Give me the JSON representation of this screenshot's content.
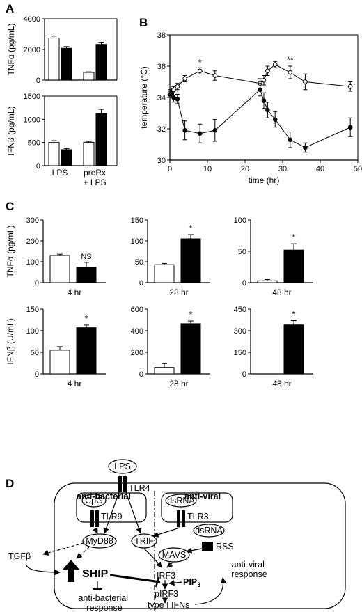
{
  "panels": {
    "A": "A",
    "B": "B",
    "C": "C",
    "D": "D"
  },
  "chart_data": [
    {
      "panel": "A",
      "type": "bar",
      "categories": [
        "LPS",
        "preRx\n+ LPS"
      ],
      "ylabel": "TNFα (pg/mL)",
      "ylim": [
        0,
        4000
      ],
      "yticks": [
        "0",
        "2000",
        "4000"
      ],
      "series": [
        {
          "fill": "#ffffff",
          "values": [
            2750,
            500
          ],
          "errors": [
            120,
            40
          ]
        },
        {
          "fill": "#000000",
          "values": [
            2080,
            2330
          ],
          "errors": [
            110,
            110
          ]
        }
      ]
    },
    {
      "panel": "A",
      "type": "bar",
      "categories": [
        "LPS",
        "preRx\n+ LPS"
      ],
      "ylabel": "IFNβ (pg/mL)",
      "ylim": [
        0,
        1500
      ],
      "yticks": [
        "0",
        "500",
        "1000",
        "1500"
      ],
      "series": [
        {
          "fill": "#ffffff",
          "values": [
            500,
            505
          ],
          "errors": [
            40,
            20
          ]
        },
        {
          "fill": "#000000",
          "values": [
            345,
            1125
          ],
          "errors": [
            25,
            90
          ]
        }
      ]
    },
    {
      "panel": "B",
      "type": "line",
      "xlabel": "time (hr)",
      "ylabel": "temperature (°C)",
      "xlim": [
        0,
        50
      ],
      "ylim": [
        30,
        38
      ],
      "xticks": [
        "0",
        "10",
        "20",
        "30",
        "40",
        "50"
      ],
      "yticks": [
        "30",
        "32",
        "34",
        "36",
        "38"
      ],
      "series": [
        {
          "marker": "open-circle",
          "x": [
            0,
            0.5,
            1,
            2,
            4,
            8,
            12,
            24,
            25,
            26,
            28,
            32,
            36,
            48
          ],
          "y": [
            34.3,
            34.4,
            34.5,
            34.7,
            35.2,
            35.7,
            35.4,
            34.9,
            35.1,
            35.7,
            36.1,
            35.6,
            35.0,
            34.7
          ],
          "errors": [
            0.2,
            0.2,
            0.2,
            0.2,
            0.2,
            0.2,
            0.3,
            0.3,
            0.3,
            0.3,
            0.2,
            0.4,
            0.5,
            0.3
          ]
        },
        {
          "marker": "filled-circle",
          "x": [
            0,
            0.5,
            1,
            2,
            4,
            8,
            12,
            24,
            25,
            26,
            28,
            32,
            36,
            48
          ],
          "y": [
            34.2,
            34.3,
            34.0,
            33.9,
            31.9,
            31.7,
            31.9,
            34.5,
            33.8,
            33.2,
            32.6,
            31.3,
            30.8,
            32.1
          ],
          "errors": [
            0.2,
            0.3,
            0.3,
            0.3,
            0.6,
            0.6,
            0.7,
            0.4,
            0.5,
            0.5,
            0.5,
            0.5,
            0.3,
            0.6
          ]
        }
      ],
      "annotations": [
        {
          "x": 8,
          "y": 36.05,
          "text": "*"
        },
        {
          "x": 32,
          "y": 36.2,
          "text": "**"
        }
      ]
    },
    {
      "panel": "C",
      "type": "bar",
      "row": "top",
      "ylabel": "TNFα (pg/mL)",
      "subplots": [
        {
          "xlabel": "4 hr",
          "ylim": [
            0,
            300
          ],
          "yticks": [
            "0",
            "100",
            "200",
            "300"
          ],
          "values": [
            130,
            75
          ],
          "errors": [
            6,
            22
          ],
          "labels": [
            "",
            "NS"
          ]
        },
        {
          "xlabel": "28 hr",
          "ylim": [
            0,
            150
          ],
          "yticks": [
            "0",
            "50",
            "100",
            "150"
          ],
          "values": [
            43,
            105
          ],
          "errors": [
            3,
            10
          ],
          "labels": [
            "",
            "*"
          ]
        },
        {
          "xlabel": "48 hr",
          "ylim": [
            0,
            100
          ],
          "yticks": [
            "0",
            "50",
            "100"
          ],
          "values": [
            3,
            52
          ],
          "errors": [
            2,
            10
          ],
          "labels": [
            "",
            "*"
          ]
        }
      ]
    },
    {
      "panel": "C",
      "type": "bar",
      "row": "bottom",
      "ylabel": "IFNβ (U/mL)",
      "subplots": [
        {
          "xlabel": "4 hr",
          "ylim": [
            0,
            150
          ],
          "yticks": [
            "0",
            "50",
            "100",
            "150"
          ],
          "values": [
            55,
            107
          ],
          "errors": [
            8,
            6
          ],
          "labels": [
            "",
            "*"
          ]
        },
        {
          "xlabel": "28 hr",
          "ylim": [
            0,
            600
          ],
          "yticks": [
            "0",
            "200",
            "400",
            "600"
          ],
          "values": [
            60,
            465
          ],
          "errors": [
            35,
            25
          ],
          "labels": [
            "",
            "*"
          ]
        },
        {
          "xlabel": "48 hr",
          "ylim": [
            0,
            450
          ],
          "yticks": [
            "0",
            "150",
            "300",
            "450"
          ],
          "values": [
            0,
            340
          ],
          "errors": [
            0,
            30
          ],
          "labels": [
            "",
            "*"
          ]
        }
      ]
    }
  ],
  "diagram": {
    "heading_left": "anti-bacterial",
    "heading_right": "anti-viral",
    "nodes": {
      "lps": "LPS",
      "tlr4": "TLR4",
      "cpg": "CpG",
      "tlr9": "TLR9",
      "dsrna_endo": "dsRNA",
      "tlr3": "TLR3",
      "dsrna_cyto": "dsRNA",
      "rss": "RSS",
      "myd88": "MyD88",
      "trif": "TRIF",
      "mavs": "MAVS",
      "tgfb": "TGFβ",
      "ship": "SHIP",
      "anti_bacterial_response": "anti-bacterial\nresponse",
      "irf3": "IRF3",
      "pip3": "PIP",
      "pip3_sub": "3",
      "pirf3": "pIRF3",
      "type1_ifns": "type I IFNs",
      "anti_viral_response": "anti-viral\nresponse"
    }
  }
}
